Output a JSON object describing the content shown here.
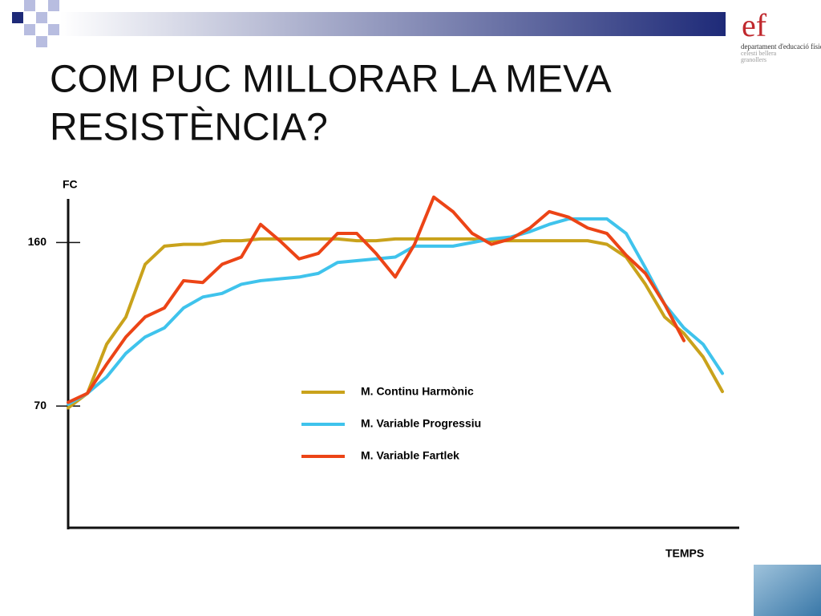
{
  "header": {
    "logo": "ef",
    "department": "departament d'educació física",
    "school": "celesti bellera",
    "town": "granollers"
  },
  "chart_data": {
    "type": "line",
    "title": [
      "COM PUC MILLORAR LA MEVA",
      "RESISTÈNCIA?"
    ],
    "y_label": "FC",
    "x_label": "TEMPS",
    "ylim": [
      3,
      184
    ],
    "yticks": [
      70,
      160
    ],
    "series": [
      {
        "name": "M. Continu Harmònic",
        "color": "#c9a21b",
        "values": [
          69,
          77,
          104,
          119,
          148,
          158,
          159,
          159,
          161,
          161,
          162,
          162,
          162,
          162,
          162,
          161,
          161,
          162,
          162,
          162,
          162,
          162,
          161,
          161,
          161,
          161,
          161,
          161,
          159,
          152,
          137,
          119,
          110,
          97,
          78
        ]
      },
      {
        "name": "M. Variable Progressiu",
        "color": "#3fc3ec",
        "values": [
          71,
          77,
          86,
          99,
          108,
          113,
          124,
          130,
          132,
          137,
          139,
          140,
          141,
          143,
          149,
          150,
          151,
          152,
          158,
          158,
          158,
          160,
          162,
          163,
          166,
          170,
          173,
          173,
          173,
          165,
          146,
          126,
          113,
          104,
          88
        ]
      },
      {
        "name": "M. Variable Fartlek",
        "color": "#ec4416",
        "values": [
          72,
          77,
          93,
          108,
          119,
          124,
          139,
          138,
          148,
          152,
          170,
          161,
          151,
          154,
          165,
          165,
          154,
          141,
          159,
          185,
          177,
          165,
          159,
          162,
          168,
          177,
          174,
          168,
          165,
          153,
          143,
          126,
          106,
          null,
          null
        ]
      }
    ]
  }
}
